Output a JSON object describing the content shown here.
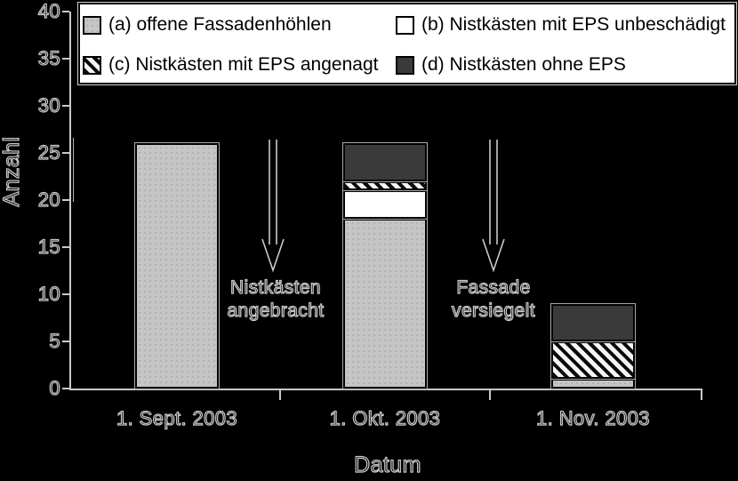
{
  "legend": {
    "items": [
      {
        "key": "a",
        "label": "(a) offene Fassadenhöhlen",
        "swatch": "light-gray"
      },
      {
        "key": "b",
        "label": "(b) Nistkästen mit EPS unbeschädigt",
        "swatch": "white"
      },
      {
        "key": "c",
        "label": "(c) Nistkästen mit EPS angenagt",
        "swatch": "black-white-diagonal-hatch"
      },
      {
        "key": "d",
        "label": "(d) Nistkästen ohne EPS",
        "swatch": "dark-gray"
      }
    ]
  },
  "axes": {
    "y": {
      "title": "Anzahl",
      "ticks": [
        0,
        5,
        10,
        15,
        20,
        25,
        30,
        35,
        40
      ],
      "range": [
        0,
        40
      ]
    },
    "x": {
      "title": "Datum",
      "categories": [
        "1. Sept. 2003",
        "1. Okt. 2003",
        "1. Nov. 2003"
      ]
    }
  },
  "annotations": [
    {
      "lines": [
        "Nistkästen",
        "angebracht"
      ]
    },
    {
      "lines": [
        "Fassade",
        "versiegelt"
      ]
    }
  ],
  "colors": {
    "background": "#000000",
    "bar_light_gray": "#c5c5c5",
    "bar_white": "#ffffff",
    "bar_dark_gray": "#3a3a3a",
    "hatch_black": "#0a0a0a",
    "line_fringe": "#c9c9c9",
    "legend_background": "#ffffff"
  },
  "chart_data": {
    "type": "bar",
    "stacked": true,
    "title": "",
    "xlabel": "Datum",
    "ylabel": "Anzahl",
    "ylim": [
      0,
      40
    ],
    "grid": false,
    "legend_position": "top",
    "categories": [
      "1. Sept. 2003",
      "1. Okt. 2003",
      "1. Nov. 2003"
    ],
    "series": [
      {
        "key": "a",
        "name": "(a) offene Fassadenhöhlen",
        "values": [
          26,
          18,
          1
        ]
      },
      {
        "key": "b",
        "name": "(b) Nistkästen mit EPS unbeschädigt",
        "values": [
          0,
          3,
          0
        ]
      },
      {
        "key": "c",
        "name": "(c) Nistkästen mit EPS angenagt",
        "values": [
          0,
          1,
          4
        ]
      },
      {
        "key": "d",
        "name": "(d) Nistkästen ohne EPS",
        "values": [
          0,
          4,
          4
        ]
      }
    ],
    "totals": [
      26,
      26,
      9
    ],
    "annotations": [
      {
        "text": "Nistkästen angebracht"
      },
      {
        "text": "Fassade versiegelt"
      }
    ]
  }
}
